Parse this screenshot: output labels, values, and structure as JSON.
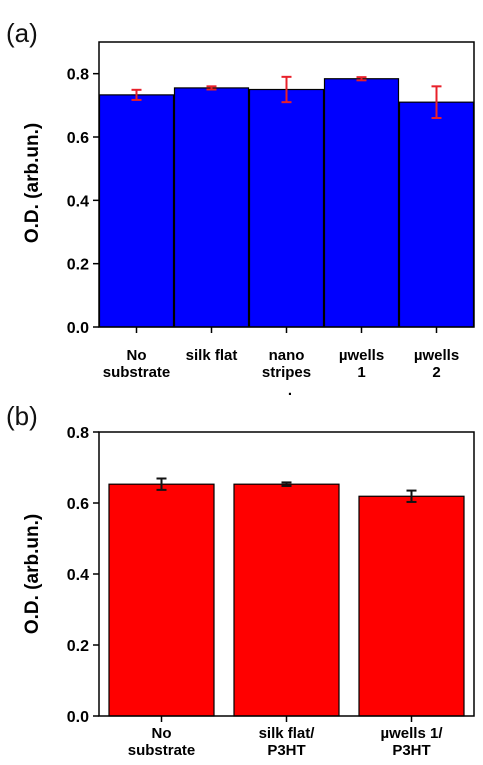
{
  "chart_data": [
    {
      "panel": "(a)",
      "type": "bar",
      "ylabel": "O.D. (arb.un.)",
      "ylim": [
        0,
        0.9
      ],
      "yticks": [
        "0.0",
        "0.2",
        "0.4",
        "0.6",
        "0.8"
      ],
      "ytick_values": [
        0,
        0.2,
        0.4,
        0.6,
        0.8
      ],
      "categories": [
        [
          "No",
          "substrate"
        ],
        [
          "silk flat"
        ],
        [
          "nano",
          "stripes"
        ],
        [
          "µwells",
          "1"
        ],
        [
          "µwells",
          "2"
        ]
      ],
      "values": [
        0.733,
        0.755,
        0.75,
        0.784,
        0.71
      ],
      "errors": [
        0.016,
        0.005,
        0.04,
        0.005,
        0.05
      ],
      "bar_color": "#0000ff",
      "error_color": "#e8202a",
      "stray_mark": "."
    },
    {
      "panel": "(b)",
      "type": "bar",
      "ylabel": "O.D. (arb.un.)",
      "ylim": [
        0,
        0.8
      ],
      "yticks": [
        "0.0",
        "0.2",
        "0.4",
        "0.6",
        "0.8"
      ],
      "ytick_values": [
        0,
        0.2,
        0.4,
        0.6,
        0.8
      ],
      "categories": [
        [
          "No",
          "substrate"
        ],
        [
          "silk flat/",
          "P3HT"
        ],
        [
          "µwells 1/",
          "P3HT"
        ]
      ],
      "values": [
        0.653,
        0.653,
        0.619
      ],
      "errors": [
        0.016,
        0.005,
        0.016
      ],
      "bar_color": "#ff0000",
      "error_color": "#111111"
    }
  ]
}
